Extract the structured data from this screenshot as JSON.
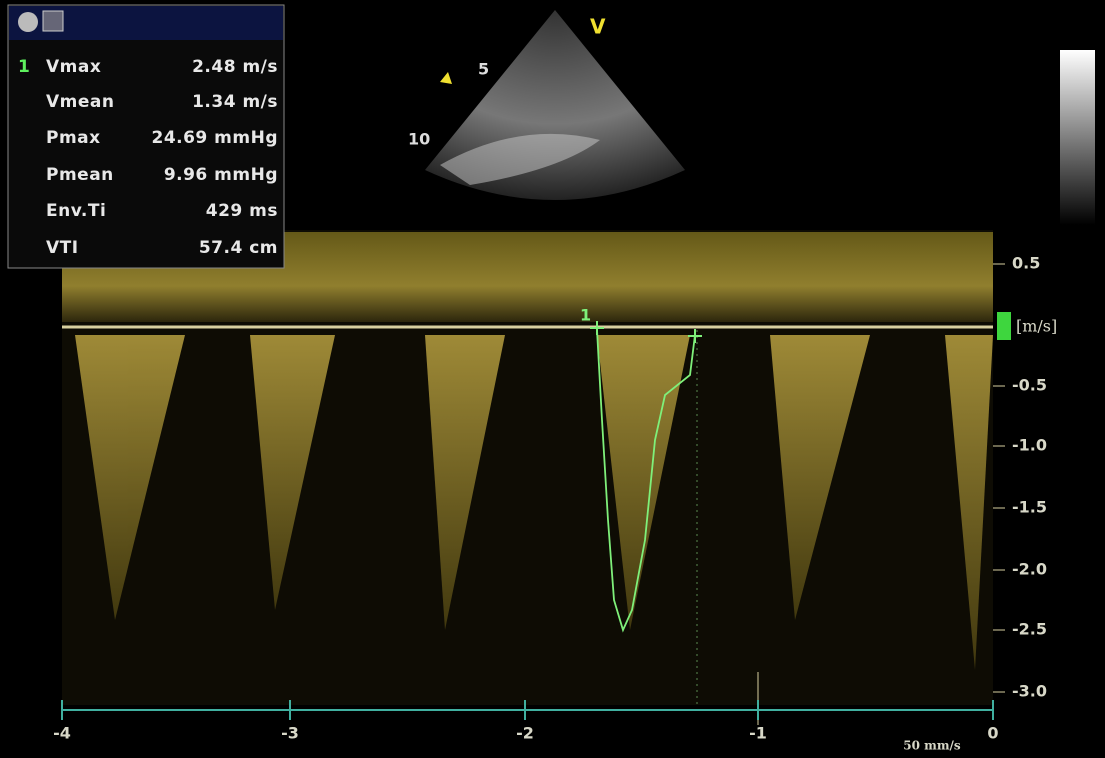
{
  "panel": {
    "rows": [
      {
        "index": "1",
        "label": "Vmax",
        "value": "2.48 m/s"
      },
      {
        "label": "Vmean",
        "value": "1.34 m/s"
      },
      {
        "label": "Pmax",
        "value": "24.69 mmHg"
      },
      {
        "label": "Pmean",
        "value": "9.96 mmHg"
      },
      {
        "label": "Env.Ti",
        "value": "429 ms"
      },
      {
        "label": "VTI",
        "value": "57.4 cm"
      }
    ]
  },
  "sector": {
    "depth_labels": [
      "5",
      "10"
    ],
    "mode": "V"
  },
  "velocity_axis": {
    "ticks": [
      "0.5",
      "-0.5",
      "-1.0",
      "-1.5",
      "-2.0",
      "-2.5",
      "-3.0"
    ],
    "unit": "[m/s]"
  },
  "time_axis": {
    "ticks": [
      "-4",
      "-3",
      "-2",
      "-1",
      "0"
    ],
    "speed": "50 mm/s"
  },
  "trace": {
    "marker": "1"
  }
}
